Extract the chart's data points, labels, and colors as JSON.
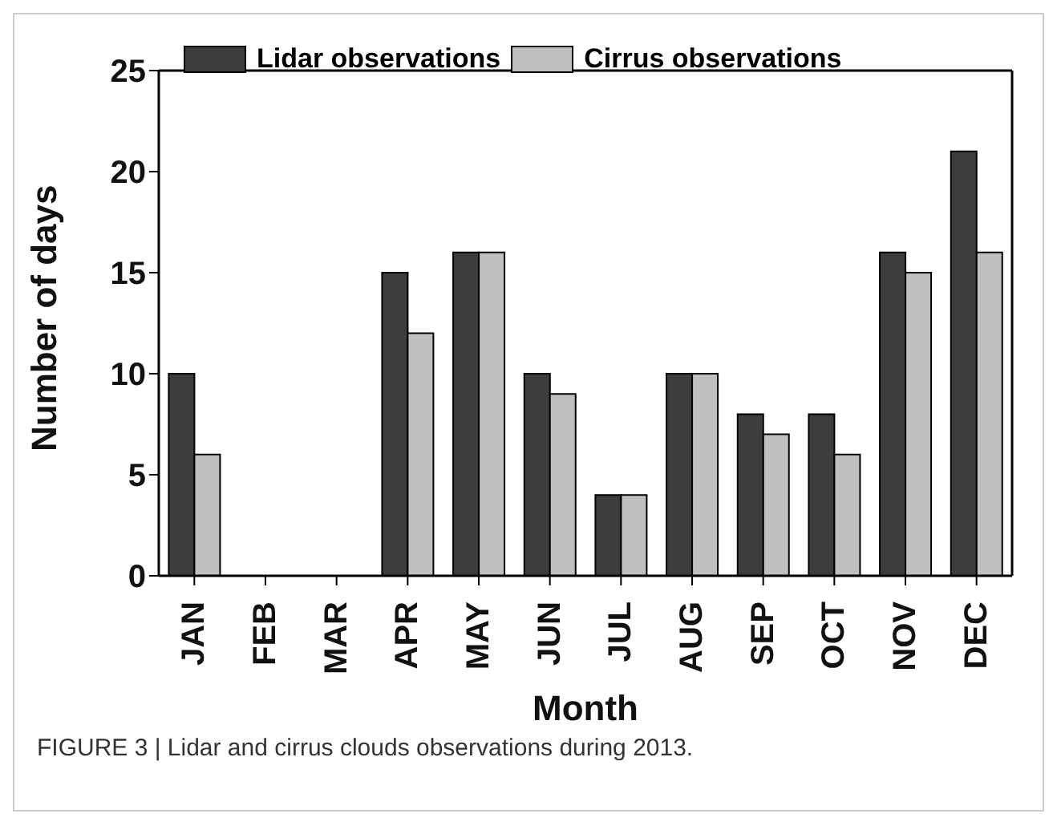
{
  "chart_data": {
    "type": "bar",
    "xlabel": "Month",
    "ylabel": "Number of days",
    "categories": [
      "JAN",
      "FEB",
      "MAR",
      "APR",
      "MAY",
      "JUN",
      "JUL",
      "AUG",
      "SEP",
      "OCT",
      "NOV",
      "DEC"
    ],
    "series": [
      {
        "name": "Lidar observations",
        "color": "#3d3d3d",
        "values": [
          10,
          0,
          0,
          15,
          16,
          10,
          4,
          10,
          8,
          8,
          16,
          21
        ]
      },
      {
        "name": "Cirrus observations",
        "color": "#bfbfbf",
        "values": [
          6,
          0,
          0,
          12,
          16,
          9,
          4,
          10,
          7,
          6,
          15,
          16
        ]
      }
    ],
    "ylim": [
      0,
      25
    ],
    "yticks": [
      0,
      5,
      10,
      15,
      20,
      25
    ],
    "grid": false,
    "legend": "top left",
    "annotations": [
      "FIGURE 3 | Lidar and cirrus clouds observations during 2013."
    ]
  }
}
